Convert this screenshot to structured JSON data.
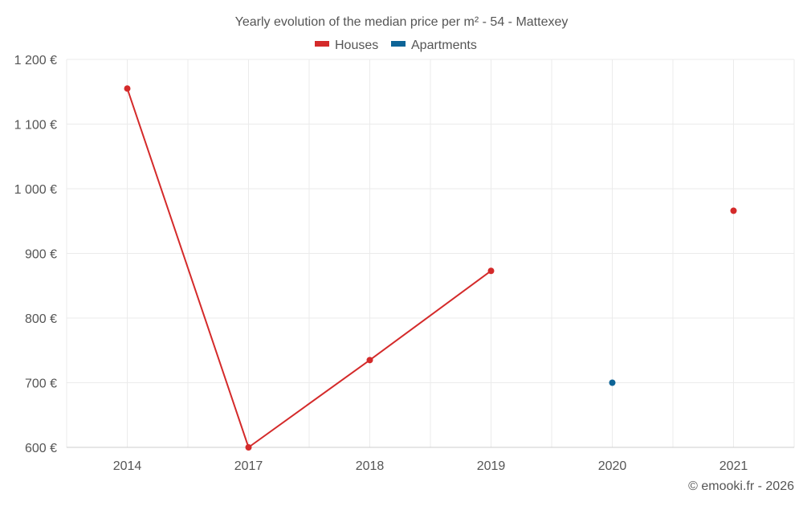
{
  "chart_data": {
    "type": "line",
    "title": "Yearly evolution of the median price per m² - 54 - Mattexey",
    "categories": [
      "2014",
      "2017",
      "2018",
      "2019",
      "2020",
      "2021"
    ],
    "series": [
      {
        "name": "Houses",
        "color": "#d42a2a",
        "values": [
          1155,
          600,
          735,
          873,
          null,
          966
        ]
      },
      {
        "name": "Apartments",
        "color": "#0e6497",
        "values": [
          null,
          null,
          null,
          null,
          700,
          null
        ]
      }
    ],
    "ylim": [
      600,
      1200
    ],
    "yticks": [
      600,
      700,
      800,
      900,
      1000,
      1100,
      1200
    ],
    "ytick_labels": [
      "600 €",
      "700 €",
      "800 €",
      "900 €",
      "1 000 €",
      "1 100 €",
      "1 200 €"
    ],
    "xlabel": "",
    "ylabel": "",
    "grid": true,
    "legend_position": "top-center"
  },
  "credit": "© emooki.fr - 2026"
}
